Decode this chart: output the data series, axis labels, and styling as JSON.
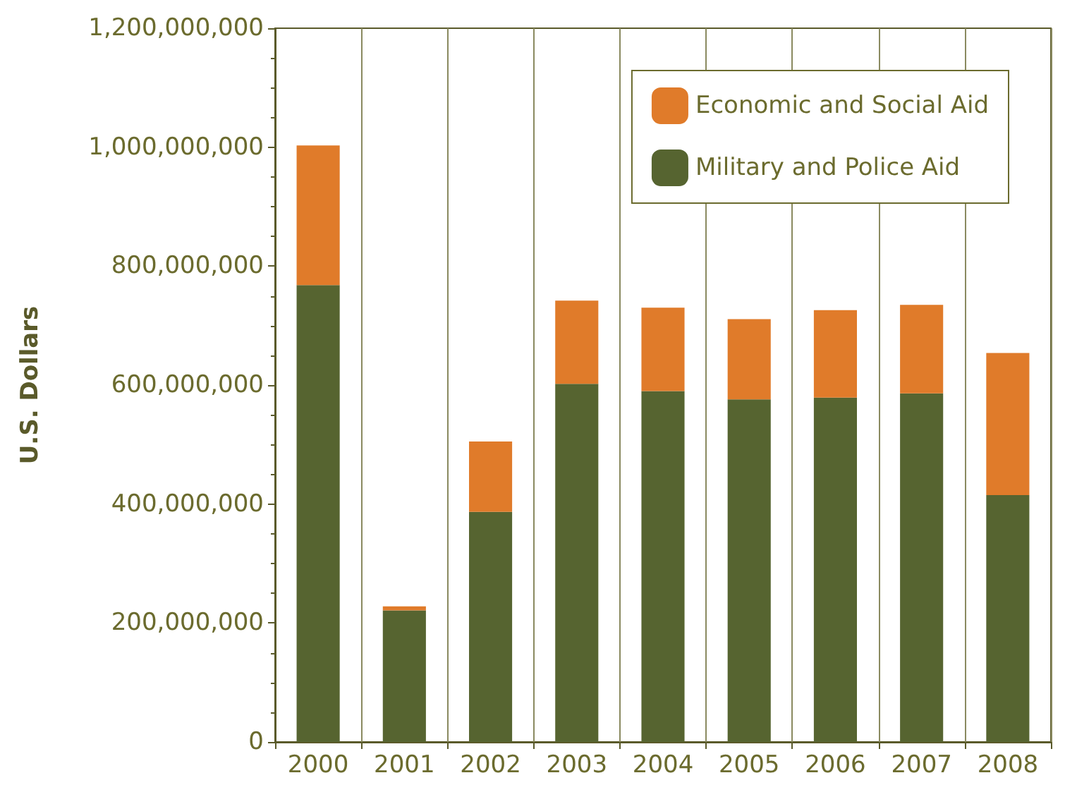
{
  "chart_data": {
    "type": "bar",
    "ylabel": "U.S. Dollars",
    "categories": [
      "2000",
      "2001",
      "2002",
      "2003",
      "2004",
      "2005",
      "2006",
      "2007",
      "2008"
    ],
    "stacked": true,
    "series": [
      {
        "name": "Military and Police Aid",
        "color": "#566430",
        "values": [
          768000000,
          221000000,
          387000000,
          602000000,
          590000000,
          576000000,
          579000000,
          586000000,
          415000000
        ]
      },
      {
        "name": "Economic and Social Aid",
        "color": "#e07b2a",
        "values": [
          235000000,
          7000000,
          118000000,
          140000000,
          140000000,
          135000000,
          147000000,
          149000000,
          239000000
        ]
      }
    ],
    "ylim": [
      0,
      1200000000
    ],
    "yticks": [
      {
        "value": 0,
        "label": "0"
      },
      {
        "value": 200000000,
        "label": "200,000,000"
      },
      {
        "value": 400000000,
        "label": "400,000,000"
      },
      {
        "value": 600000000,
        "label": "600,000,000"
      },
      {
        "value": 800000000,
        "label": "800,000,000"
      },
      {
        "value": 1000000000,
        "label": "1,000,000,000"
      },
      {
        "value": 1200000000,
        "label": "1,200,000,000"
      }
    ],
    "grid": "x",
    "legend": "top right"
  }
}
